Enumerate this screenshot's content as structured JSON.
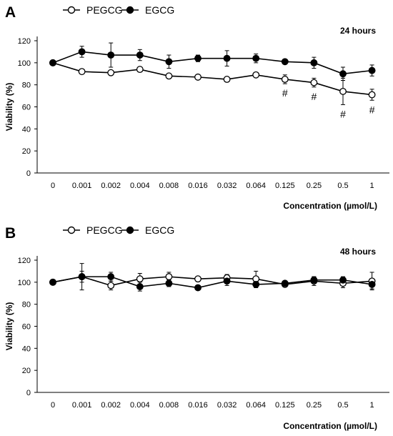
{
  "chart_data": [
    {
      "panel": "A",
      "type": "line",
      "time_label": "24 hours",
      "xlabel": "Concentration (µmol/L)",
      "ylabel": "Viability (%)",
      "ylim": [
        0,
        120
      ],
      "yticks": [
        "0",
        "20",
        "40",
        "60",
        "80",
        "100",
        "120"
      ],
      "categories": [
        "0",
        "0.001",
        "0.002",
        "0.004",
        "0.008",
        "0.016",
        "0.032",
        "0.064",
        "0.125",
        "0.25",
        "0.5",
        "1"
      ],
      "legend": "top-left",
      "grid": false,
      "series": [
        {
          "name": "PEGCG",
          "marker": "open-circle",
          "values": [
            100,
            92,
            91,
            94,
            88,
            87,
            85,
            89,
            85,
            82,
            74,
            71
          ],
          "errors": [
            0,
            2,
            1.5,
            1.5,
            1.5,
            1.5,
            1.5,
            2,
            4,
            4,
            12,
            5
          ]
        },
        {
          "name": "EGCG",
          "marker": "filled-circle",
          "values": [
            100,
            110,
            107,
            107,
            101,
            104,
            104,
            104,
            101,
            100,
            90,
            93
          ],
          "errors": [
            0,
            5,
            11,
            5,
            6,
            3,
            7,
            4,
            2,
            5,
            6,
            5
          ]
        }
      ],
      "annotations": [
        {
          "text": "#",
          "category": "0.125"
        },
        {
          "text": "#",
          "category": "0.25"
        },
        {
          "text": "#",
          "category": "0.5"
        },
        {
          "text": "#",
          "category": "1"
        }
      ]
    },
    {
      "panel": "B",
      "type": "line",
      "time_label": "48 hours",
      "xlabel": "Concentration (µmol/L)",
      "ylabel": "Viability (%)",
      "ylim": [
        0,
        120
      ],
      "yticks": [
        "0",
        "20",
        "40",
        "60",
        "80",
        "100",
        "120"
      ],
      "categories": [
        "0",
        "0.001",
        "0.002",
        "0.004",
        "0.008",
        "0.016",
        "0.032",
        "0.064",
        "0.125",
        "0.25",
        "0.5",
        "1"
      ],
      "legend": "top-left",
      "grid": false,
      "series": [
        {
          "name": "PEGCG",
          "marker": "open-circle",
          "values": [
            100,
            105,
            97,
            103,
            105,
            103,
            104,
            103,
            98,
            101,
            99,
            101
          ],
          "errors": [
            0,
            12,
            4,
            5,
            4,
            2,
            3,
            7,
            2,
            4,
            4,
            8
          ]
        },
        {
          "name": "EGCG",
          "marker": "filled-circle",
          "values": [
            100,
            105,
            105,
            96,
            99,
            95,
            101,
            98,
            99,
            102,
            102,
            98
          ],
          "errors": [
            0,
            5,
            4,
            4,
            3,
            2,
            4,
            3,
            2,
            3,
            3,
            4
          ]
        }
      ],
      "annotations": []
    }
  ]
}
